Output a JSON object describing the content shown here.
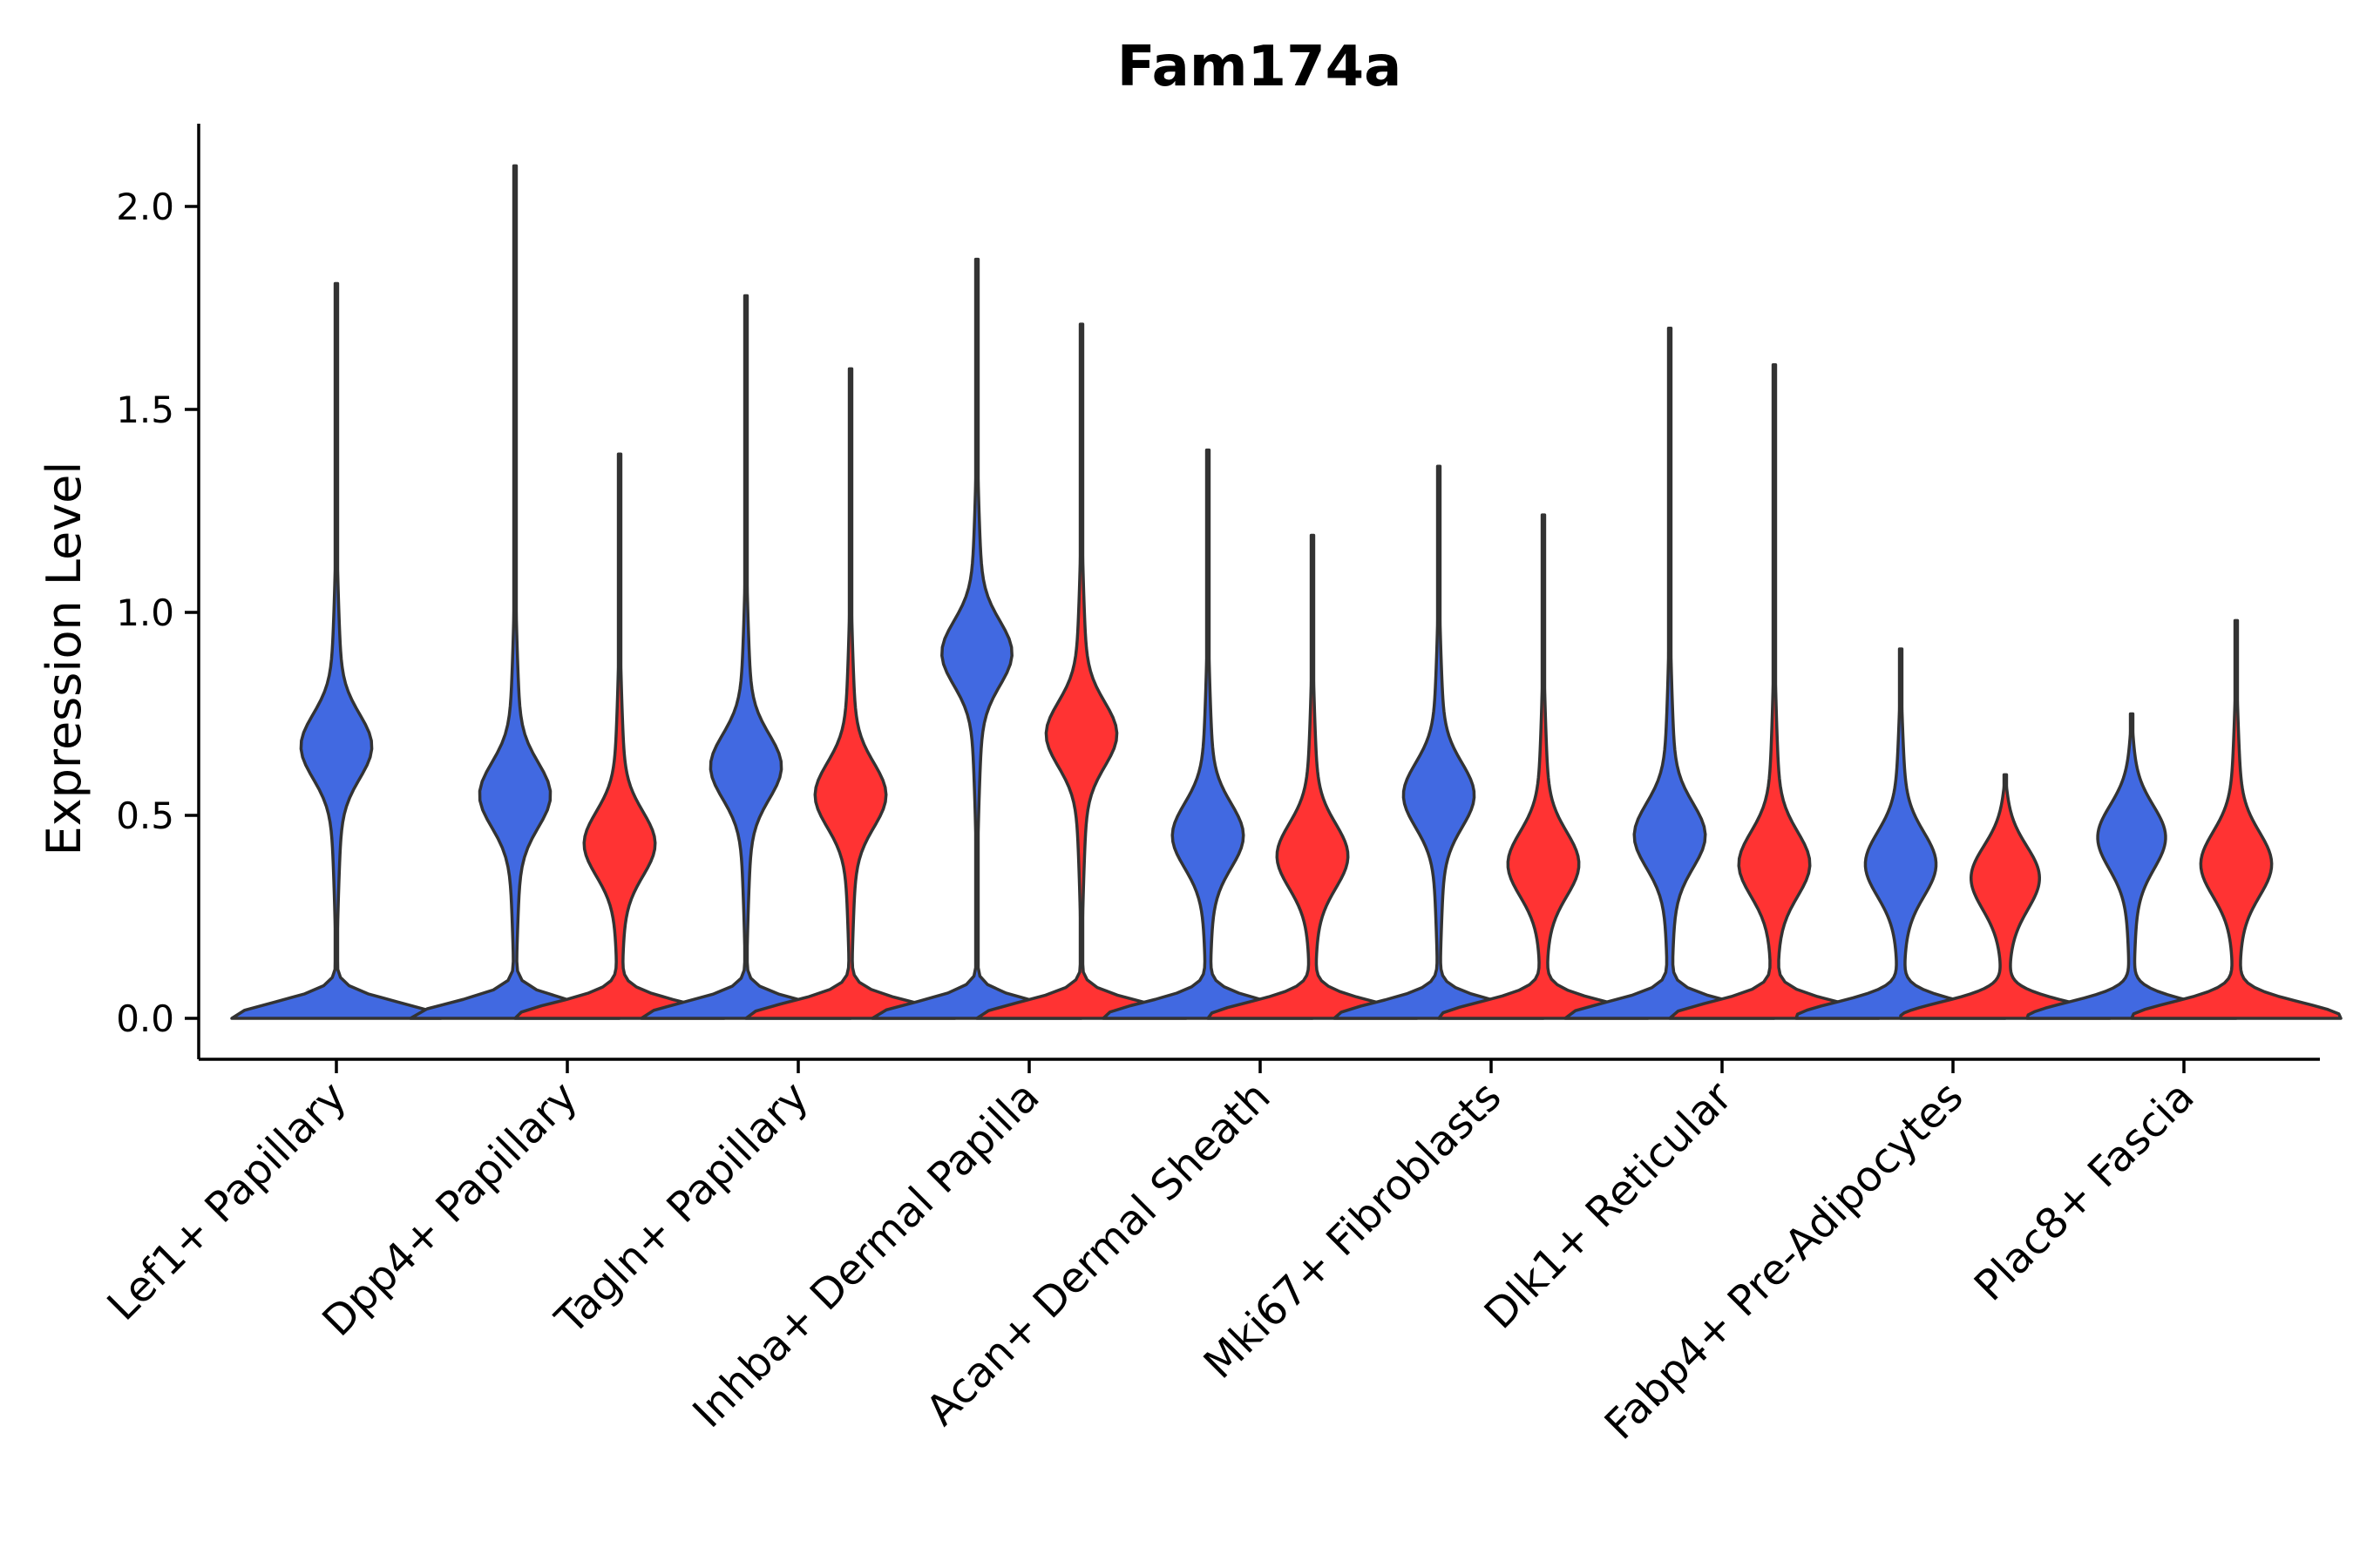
{
  "chart_data": {
    "type": "violin",
    "title": "Fam174a",
    "xlabel": "",
    "ylabel": "Expression Level",
    "ylim": [
      -0.105,
      2.2
    ],
    "yticks": [
      0.0,
      0.5,
      1.0,
      1.5,
      2.0
    ],
    "ytick_labels": [
      "0.0",
      "0.5",
      "1.0",
      "1.5",
      "2.0"
    ],
    "categories": [
      "Lef1+ Papillary",
      "Dpp4+ Papillary",
      "Tagln+ Papillary",
      "Inhba+ Dermal Papilla",
      "Acan+ Dermal Sheath",
      "Mki67+ Fibroblasts",
      "Dlk1+ Reticular",
      "Fabp4+ Pre-Adipocytes",
      "Plac8+ Fascia"
    ],
    "series": [
      {
        "name": "group-blue",
        "color": "#4169E1",
        "max_values": [
          1.81,
          2.1,
          1.78,
          1.87,
          1.4,
          1.36,
          1.7,
          0.91,
          0.75
        ],
        "modes": [
          0.67,
          0.55,
          0.62,
          0.9,
          0.45,
          0.55,
          0.45,
          0.38,
          0.45
        ]
      },
      {
        "name": "group-red",
        "color": "#FF3333",
        "max_values": [
          null,
          1.39,
          1.6,
          1.71,
          1.19,
          1.24,
          1.61,
          0.6,
          0.98
        ],
        "modes": [
          null,
          0.43,
          0.55,
          0.7,
          0.4,
          0.38,
          0.38,
          0.35,
          0.38
        ]
      }
    ]
  }
}
